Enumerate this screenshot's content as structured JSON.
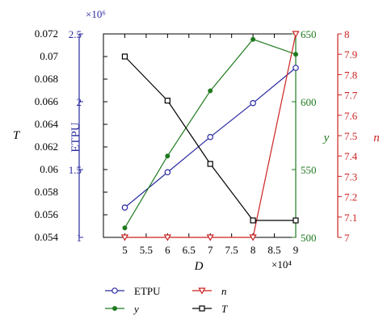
{
  "chart_data": {
    "type": "line",
    "x": [
      50000,
      60000,
      70000,
      80000,
      90000
    ],
    "xlabel": "D",
    "x_exponent": "×10⁴",
    "x_ticks": [
      "5",
      "5.5",
      "6",
      "6.5",
      "7",
      "7.5",
      "8",
      "8.5",
      "9"
    ],
    "x_tick_values": [
      50000,
      55000,
      60000,
      65000,
      70000,
      75000,
      80000,
      85000,
      90000
    ],
    "xlim": [
      45000,
      90000
    ],
    "axes": {
      "T": {
        "label": "T",
        "color": "#000000",
        "ylim": [
          0.054,
          0.072
        ],
        "ticks": [
          "0.054",
          "0.056",
          "0.058",
          "0.06",
          "0.062",
          "0.064",
          "0.066",
          "0.068",
          "0.07",
          "0.072"
        ],
        "tick_values": [
          0.054,
          0.056,
          0.058,
          0.06,
          0.062,
          0.064,
          0.066,
          0.068,
          0.07,
          0.072
        ]
      },
      "ETPU": {
        "label": "ETPU",
        "color": "#2a2aa0",
        "ylim": [
          1000000,
          2500000
        ],
        "exponent": "×10⁶",
        "ticks": [
          "1",
          "1.5",
          "2",
          "2.5"
        ],
        "tick_values": [
          1000000,
          1500000,
          2000000,
          2500000
        ]
      },
      "y": {
        "label": "y",
        "color": "#1f7a1f",
        "ylim": [
          500,
          650
        ],
        "ticks": [
          "500",
          "550",
          "600",
          "650"
        ],
        "tick_values": [
          500,
          550,
          600,
          650
        ]
      },
      "n": {
        "label": "n",
        "color": "#cc2222",
        "ylim": [
          7,
          8
        ],
        "ticks": [
          "7",
          "7.1",
          "7.2",
          "7.3",
          "7.4",
          "7.5",
          "7.6",
          "7.7",
          "7.8",
          "7.9",
          "8"
        ],
        "tick_values": [
          7,
          7.1,
          7.2,
          7.3,
          7.4,
          7.5,
          7.6,
          7.7,
          7.8,
          7.9,
          8
        ]
      }
    },
    "series": [
      {
        "name": "ETPU",
        "axis": "ETPU",
        "color": "#2a2aa0",
        "marker": "circle",
        "values": [
          1220000,
          1480000,
          1740000,
          1990000,
          2250000
        ]
      },
      {
        "name": "y",
        "axis": "y",
        "color": "#1f7a1f",
        "marker": "dot",
        "values": [
          507,
          560,
          608,
          646,
          635
        ]
      },
      {
        "name": "n",
        "axis": "n",
        "color": "#cc2222",
        "marker": "triangle-down",
        "values": [
          7,
          7,
          7,
          7,
          8
        ]
      },
      {
        "name": "T",
        "axis": "T",
        "color": "#000000",
        "marker": "square",
        "values": [
          0.07,
          0.0661,
          0.0605,
          0.0555,
          0.0555
        ]
      }
    ],
    "legend": [
      {
        "label": "ETPU",
        "series": "ETPU"
      },
      {
        "label": "n",
        "series": "n"
      },
      {
        "label": "y",
        "series": "y"
      },
      {
        "label": "T",
        "series": "T"
      }
    ],
    "legend_position": "bottom",
    "grid": false
  }
}
